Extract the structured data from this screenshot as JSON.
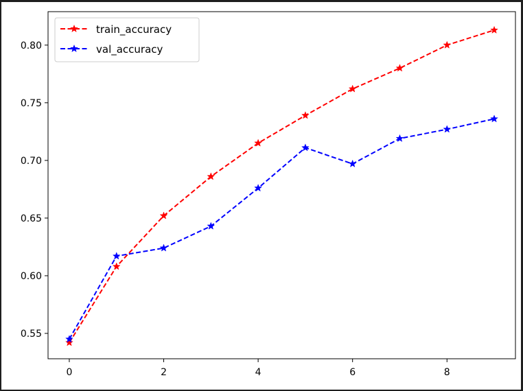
{
  "chart_data": {
    "type": "line",
    "title": "",
    "xlabel": "",
    "ylabel": "",
    "x": [
      0,
      1,
      2,
      3,
      4,
      5,
      6,
      7,
      8,
      9
    ],
    "xlim": [
      -0.45,
      9.45
    ],
    "ylim": [
      0.528,
      0.829
    ],
    "xticks": [
      0,
      2,
      4,
      6,
      8
    ],
    "xtick_labels": [
      "0",
      "2",
      "4",
      "6",
      "8"
    ],
    "yticks": [
      0.55,
      0.6,
      0.65,
      0.7,
      0.75,
      0.8
    ],
    "ytick_labels": [
      "0.55",
      "0.60",
      "0.65",
      "0.70",
      "0.75",
      "0.80"
    ],
    "grid": false,
    "legend_position": "top-left",
    "series": [
      {
        "name": "train_accuracy",
        "color": "#ff0000",
        "style": "dashed",
        "marker": "star",
        "values": [
          0.542,
          0.608,
          0.652,
          0.686,
          0.715,
          0.739,
          0.762,
          0.78,
          0.8,
          0.813
        ]
      },
      {
        "name": "val_accuracy",
        "color": "#0000ff",
        "style": "dashed",
        "marker": "star",
        "values": [
          0.545,
          0.617,
          0.624,
          0.643,
          0.676,
          0.711,
          0.697,
          0.719,
          0.727,
          0.736
        ]
      }
    ]
  }
}
